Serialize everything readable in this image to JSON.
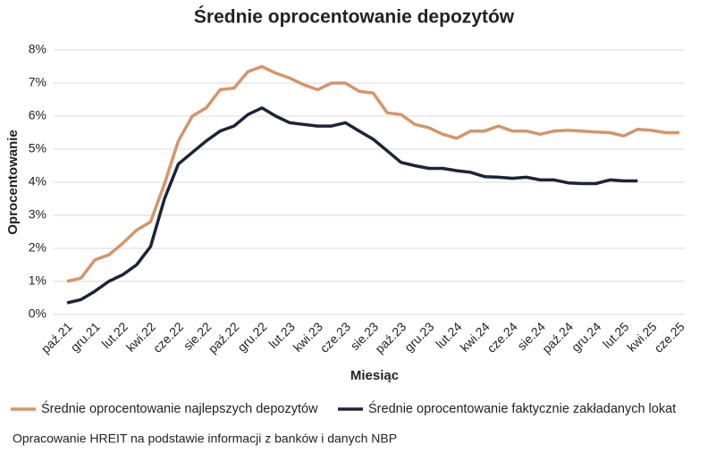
{
  "chart_data": {
    "type": "line",
    "title": "Średnie oprocentowanie depozytów",
    "x_label": "Miesiąc",
    "y_label": "Oprocentowanie",
    "source": "Opracowanie HREIT na podstawie informacji z banków i danych NBP",
    "categories": [
      "paź.21",
      null,
      "gru.21",
      null,
      "lut.22",
      null,
      "kwi.22",
      null,
      "cze.22",
      null,
      "sie.22",
      null,
      "paź.22",
      null,
      "gru.22",
      null,
      "lut.23",
      null,
      "kwi.23",
      null,
      "cze.23",
      null,
      "sie.23",
      null,
      "paź.23",
      null,
      "gru.23",
      null,
      "lut.24",
      null,
      "kwi.24",
      null,
      "cze.24",
      null,
      "sie.24",
      null,
      "paź.24",
      null,
      "gru.24",
      null,
      "lut.25",
      null,
      "kwi.25",
      null,
      "cze.25"
    ],
    "series": [
      {
        "name": "Średnie oprocentowanie najlepszych depozytów",
        "color": "#d4956a",
        "values": [
          1.0,
          1.1,
          1.65,
          1.8,
          2.15,
          2.55,
          2.8,
          3.95,
          5.25,
          6.0,
          6.25,
          6.8,
          6.85,
          7.35,
          7.5,
          7.3,
          7.15,
          6.95,
          6.8,
          7.0,
          7.0,
          6.75,
          6.7,
          6.1,
          6.05,
          5.75,
          5.65,
          5.45,
          5.33,
          5.55,
          5.55,
          5.7,
          5.55,
          5.55,
          5.45,
          5.55,
          5.57,
          5.55,
          5.52,
          5.5,
          5.4,
          5.6,
          5.57,
          5.5,
          5.5
        ]
      },
      {
        "name": "Średnie oprocentowanie faktycznie zakładanych lokat",
        "color": "#1c2536",
        "values": [
          0.35,
          0.45,
          0.7,
          1.0,
          1.2,
          1.5,
          2.05,
          3.5,
          4.55,
          4.9,
          5.25,
          5.55,
          5.7,
          6.05,
          6.25,
          6.0,
          5.8,
          5.75,
          5.7,
          5.7,
          5.8,
          5.55,
          5.3,
          4.95,
          4.6,
          4.5,
          4.42,
          4.42,
          4.35,
          4.3,
          4.17,
          4.15,
          4.12,
          4.15,
          4.07,
          4.07,
          3.98,
          3.96,
          3.96,
          4.07,
          4.04,
          4.04,
          null,
          null,
          null
        ]
      }
    ],
    "ylim": [
      0,
      8
    ],
    "yticks": [
      {
        "value": 0,
        "label": "0%"
      },
      {
        "value": 1,
        "label": "1%"
      },
      {
        "value": 2,
        "label": "2%"
      },
      {
        "value": 3,
        "label": "3%"
      },
      {
        "value": 4,
        "label": "4%"
      },
      {
        "value": 5,
        "label": "5%"
      },
      {
        "value": 6,
        "label": "6%"
      },
      {
        "value": 7,
        "label": "7%"
      },
      {
        "value": 8,
        "label": "8%"
      }
    ],
    "grid": true,
    "legend": "bottom"
  }
}
